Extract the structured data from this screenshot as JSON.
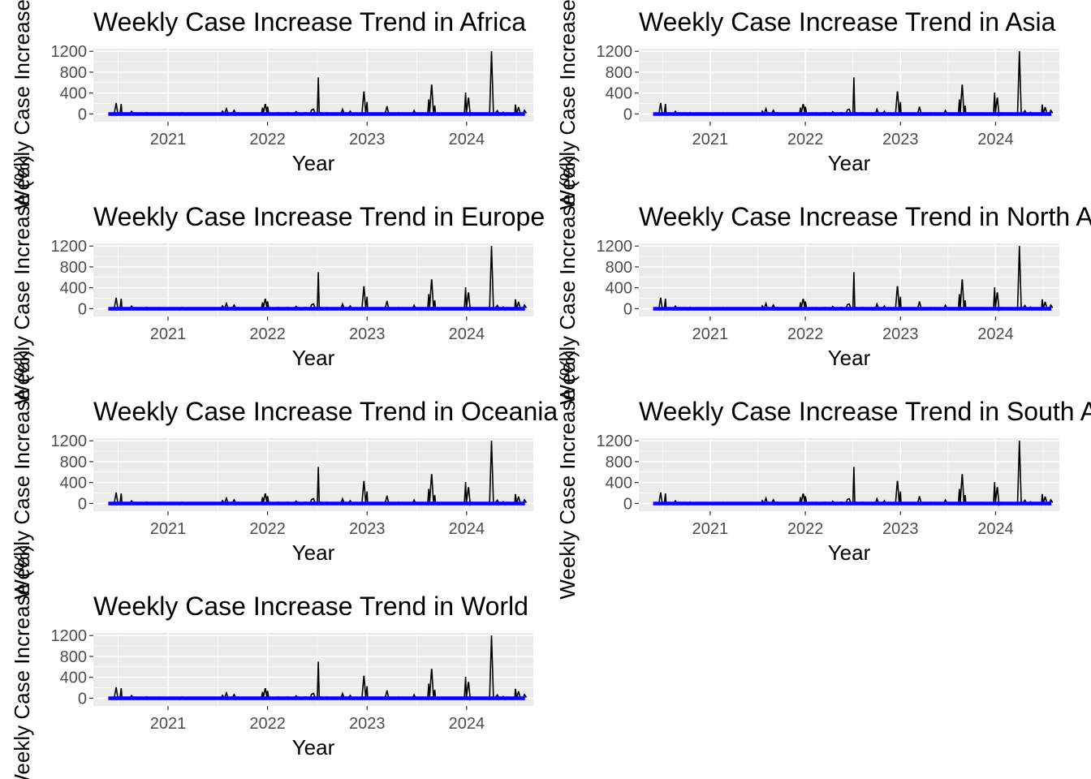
{
  "figure": {
    "ylabel": "Weekly Case Increase (%)",
    "xlabel": "Year"
  },
  "colors": {
    "panel_background": "#ebebeb",
    "grid": "#ffffff",
    "series_line": "#000000",
    "trend_line": "#0000ff"
  },
  "chart_data": [
    {
      "type": "line",
      "title": "Weekly Case Increase Trend in Africa",
      "xlabel": "Year",
      "ylabel": "Weekly Case Increase (%)",
      "xlim": [
        "2020-04",
        "2024-09"
      ],
      "ylim": [
        -150,
        1250
      ],
      "x_ticks": [
        "2021",
        "2022",
        "2023",
        "2024"
      ],
      "y_ticks": [
        0,
        400,
        800,
        1200
      ],
      "grid": true,
      "legend": "none",
      "series": [
        {
          "name": "Weekly Case Increase",
          "color": "#000000"
        },
        {
          "name": "Trend",
          "color": "#0000ff"
        }
      ]
    },
    {
      "type": "line",
      "title": "Weekly Case Increase Trend in Asia",
      "xlabel": "Year",
      "ylabel": "Weekly Case Increase (%)",
      "xlim": [
        "2020-04",
        "2024-09"
      ],
      "ylim": [
        -150,
        1250
      ],
      "x_ticks": [
        "2021",
        "2022",
        "2023",
        "2024"
      ],
      "y_ticks": [
        0,
        400,
        800,
        1200
      ],
      "grid": true,
      "legend": "none",
      "series": [
        {
          "name": "Weekly Case Increase",
          "color": "#000000"
        },
        {
          "name": "Trend",
          "color": "#0000ff"
        }
      ]
    },
    {
      "type": "line",
      "title": "Weekly Case Increase Trend in Europe",
      "xlabel": "Year",
      "ylabel": "Weekly Case Increase (%)",
      "xlim": [
        "2020-04",
        "2024-09"
      ],
      "ylim": [
        -150,
        1250
      ],
      "x_ticks": [
        "2021",
        "2022",
        "2023",
        "2024"
      ],
      "y_ticks": [
        0,
        400,
        800,
        1200
      ],
      "grid": true,
      "legend": "none",
      "series": [
        {
          "name": "Weekly Case Increase",
          "color": "#000000"
        },
        {
          "name": "Trend",
          "color": "#0000ff"
        }
      ]
    },
    {
      "type": "line",
      "title": "Weekly Case Increase Trend in North America",
      "xlabel": "Year",
      "ylabel": "Weekly Case Increase (%)",
      "xlim": [
        "2020-04",
        "2024-09"
      ],
      "ylim": [
        -150,
        1250
      ],
      "x_ticks": [
        "2021",
        "2022",
        "2023",
        "2024"
      ],
      "y_ticks": [
        0,
        400,
        800,
        1200
      ],
      "grid": true,
      "legend": "none",
      "series": [
        {
          "name": "Weekly Case Increase",
          "color": "#000000"
        },
        {
          "name": "Trend",
          "color": "#0000ff"
        }
      ]
    },
    {
      "type": "line",
      "title": "Weekly Case Increase Trend in Oceania",
      "xlabel": "Year",
      "ylabel": "Weekly Case Increase (%)",
      "xlim": [
        "2020-04",
        "2024-09"
      ],
      "ylim": [
        -150,
        1250
      ],
      "x_ticks": [
        "2021",
        "2022",
        "2023",
        "2024"
      ],
      "y_ticks": [
        0,
        400,
        800,
        1200
      ],
      "grid": true,
      "legend": "none",
      "series": [
        {
          "name": "Weekly Case Increase",
          "color": "#000000"
        },
        {
          "name": "Trend",
          "color": "#0000ff"
        }
      ]
    },
    {
      "type": "line",
      "title": "Weekly Case Increase Trend in South America",
      "xlabel": "Year",
      "ylabel": "Weekly Case Increase (%)",
      "xlim": [
        "2020-04",
        "2024-09"
      ],
      "ylim": [
        -150,
        1250
      ],
      "x_ticks": [
        "2021",
        "2022",
        "2023",
        "2024"
      ],
      "y_ticks": [
        0,
        400,
        800,
        1200
      ],
      "grid": true,
      "legend": "none",
      "series": [
        {
          "name": "Weekly Case Increase",
          "color": "#000000"
        },
        {
          "name": "Trend",
          "color": "#0000ff"
        }
      ]
    },
    {
      "type": "line",
      "title": "Weekly Case Increase Trend in World",
      "xlabel": "Year",
      "ylabel": "Weekly Case Increase (%)",
      "xlim": [
        "2020-04",
        "2024-09"
      ],
      "ylim": [
        -150,
        1250
      ],
      "x_ticks": [
        "2021",
        "2022",
        "2023",
        "2024"
      ],
      "y_ticks": [
        0,
        400,
        800,
        1200
      ],
      "grid": true,
      "legend": "none",
      "series": [
        {
          "name": "Weekly Case Increase",
          "color": "#000000"
        },
        {
          "name": "Trend",
          "color": "#0000ff"
        }
      ]
    }
  ]
}
